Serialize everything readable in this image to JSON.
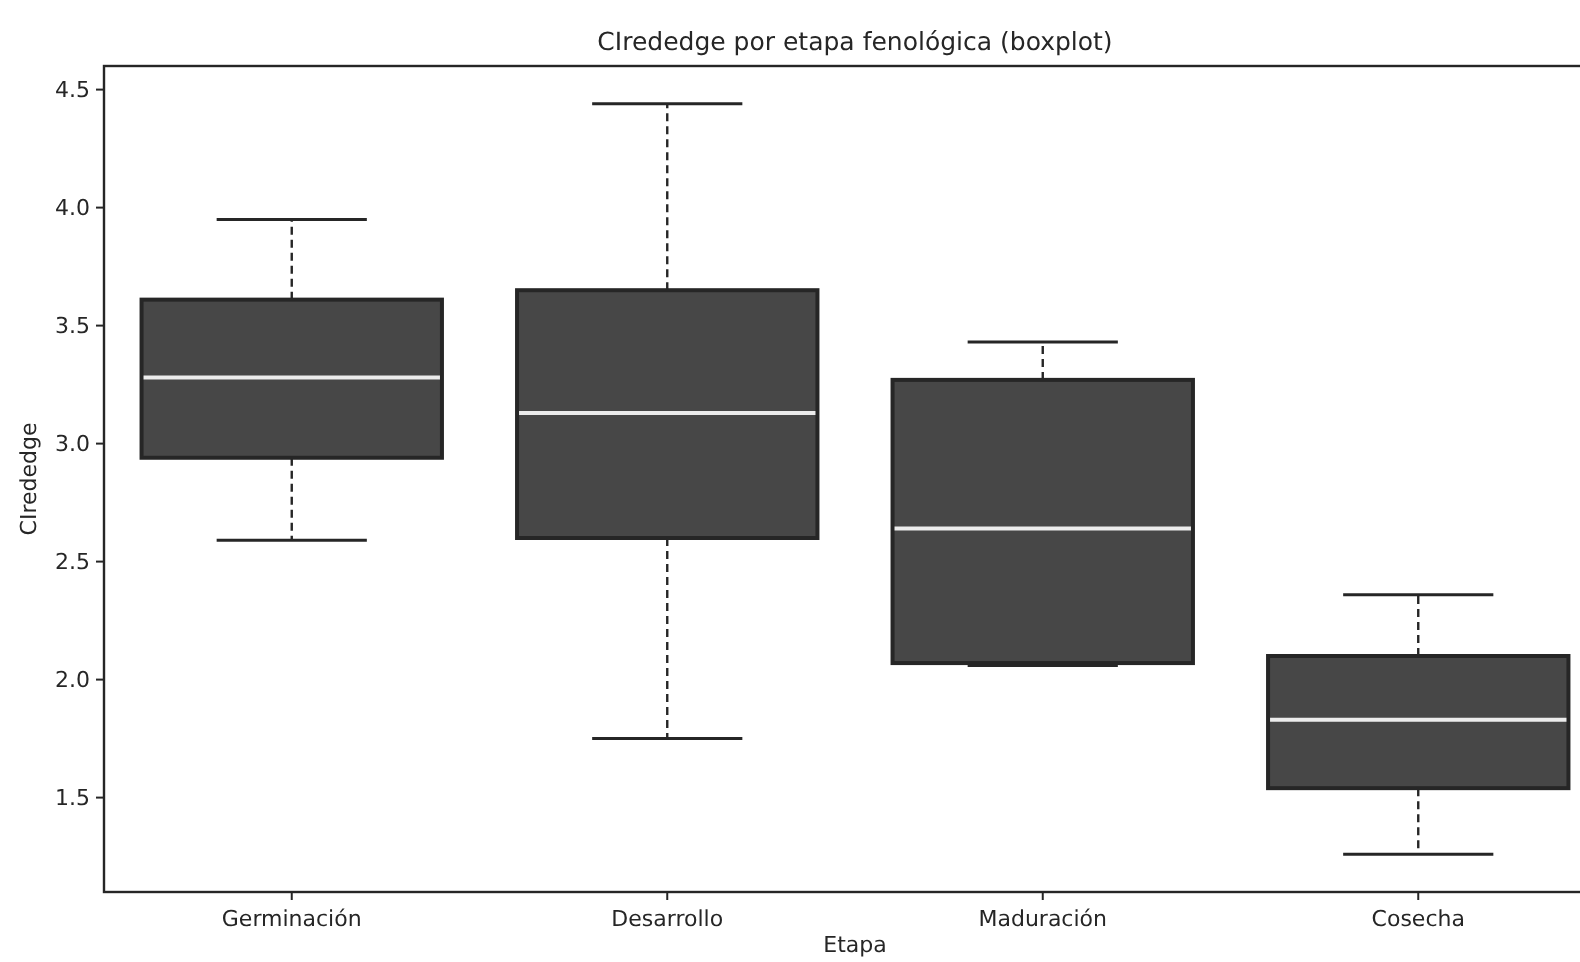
{
  "chart_data": {
    "type": "box",
    "title": "CIrededge por etapa fenológica (boxplot)",
    "xlabel": "Etapa",
    "ylabel": "CIrededge",
    "categories": [
      "Germinación",
      "Desarrollo",
      "Maduración",
      "Cosecha"
    ],
    "boxes": [
      {
        "low": 2.59,
        "q1": 2.94,
        "median": 3.28,
        "q3": 3.61,
        "high": 3.95
      },
      {
        "low": 1.75,
        "q1": 2.6,
        "median": 3.13,
        "q3": 3.65,
        "high": 4.44
      },
      {
        "low": 2.06,
        "q1": 2.07,
        "median": 2.64,
        "q3": 3.27,
        "high": 3.43
      },
      {
        "low": 1.26,
        "q1": 1.54,
        "median": 1.83,
        "q3": 2.1,
        "high": 2.36
      }
    ],
    "color": "#474747",
    "ylim": [
      1.1,
      4.6
    ],
    "yticks": [
      1.5,
      {
        "value": 2,
        "label": "2.0"
      },
      2.5,
      {
        "value": 3,
        "label": "3.0"
      },
      3.5,
      {
        "value": 4,
        "label": "4.0"
      },
      4.5
    ]
  }
}
